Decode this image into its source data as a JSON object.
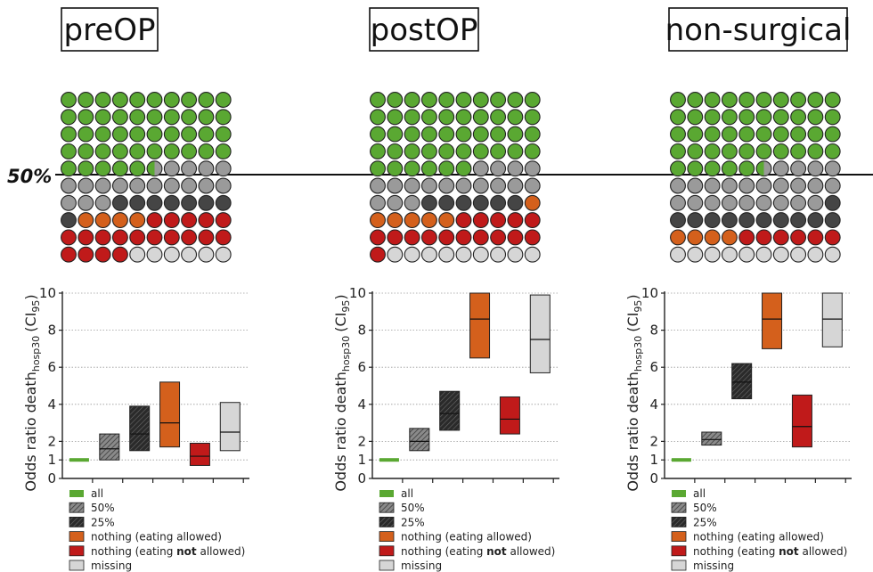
{
  "fifty_label": "50%",
  "colors": {
    "all": "#5aa832",
    "p50": "#9a9a9a",
    "p25": "#454545",
    "eat": "#d4601c",
    "noeat": "#c01a1a",
    "missing": "#d6d6d6"
  },
  "chart_data": [
    {
      "type": "waffle+floating-bar",
      "title": "preOP",
      "ylabel": {
        "main": "Odds ratio death",
        "sub": "hosp30",
        "ci": "(CI",
        "ci_sub": "95",
        "ci_end": ")"
      },
      "ylim": [
        0,
        10
      ],
      "yticks": [
        0,
        1,
        2,
        4,
        6,
        8,
        10
      ],
      "waffle_counts": {
        "all": 45.5,
        "p50": 17.5,
        "p25": 8,
        "eat": 4,
        "noeat": 19,
        "missing": 9
      },
      "boxes": [
        {
          "category": "all",
          "lower": 1,
          "upper": 1,
          "mid": 1
        },
        {
          "category": "50%",
          "lower": 1.0,
          "upper": 2.4,
          "mid": 1.6
        },
        {
          "category": "25%",
          "lower": 1.5,
          "upper": 3.9,
          "mid": 2.4
        },
        {
          "category": "nothing (eating allowed)",
          "lower": 1.7,
          "upper": 5.2,
          "mid": 3.0
        },
        {
          "category": "nothing (eating not allowed)",
          "lower": 0.7,
          "upper": 1.9,
          "mid": 1.2
        },
        {
          "category": "missing",
          "lower": 1.5,
          "upper": 4.1,
          "mid": 2.5
        }
      ]
    },
    {
      "type": "waffle+floating-bar",
      "title": "postOP",
      "ylabel": {
        "main": "Odds ratio death",
        "sub": "hosp30",
        "ci": "(CI",
        "ci_sub": "95",
        "ci_end": ")"
      },
      "ylim": [
        0,
        10
      ],
      "yticks": [
        0,
        1,
        2,
        4,
        6,
        8,
        10
      ],
      "waffle_counts": {
        "all": 46,
        "p50": 17,
        "p25": 6,
        "eat": 6,
        "noeat": 16,
        "missing": 9
      },
      "boxes": [
        {
          "category": "all",
          "lower": 1,
          "upper": 1,
          "mid": 1
        },
        {
          "category": "50%",
          "lower": 1.5,
          "upper": 2.7,
          "mid": 2.0
        },
        {
          "category": "25%",
          "lower": 2.6,
          "upper": 4.7,
          "mid": 3.5
        },
        {
          "category": "nothing (eating allowed)",
          "lower": 6.5,
          "upper": 10,
          "mid": 8.6
        },
        {
          "category": "nothing (eating not allowed)",
          "lower": 2.4,
          "upper": 4.4,
          "mid": 3.2
        },
        {
          "category": "missing",
          "lower": 5.7,
          "upper": 9.9,
          "mid": 7.5
        }
      ]
    },
    {
      "type": "waffle+floating-bar",
      "title": "non-surgical",
      "ylabel": {
        "main": "Odds ratio death",
        "sub": "hosp30",
        "ci": "(CI",
        "ci_sub": "95",
        "ci_end": ")"
      },
      "ylim": [
        0,
        10
      ],
      "yticks": [
        0,
        1,
        2,
        4,
        6,
        8,
        10
      ],
      "waffle_counts": {
        "all": 45.5,
        "p50": 23.5,
        "p25": 11,
        "eat": 4,
        "noeat": 6,
        "missing": 10
      },
      "boxes": [
        {
          "category": "all",
          "lower": 1,
          "upper": 1,
          "mid": 1
        },
        {
          "category": "50%",
          "lower": 1.8,
          "upper": 2.5,
          "mid": 2.1
        },
        {
          "category": "25%",
          "lower": 4.3,
          "upper": 6.2,
          "mid": 5.2
        },
        {
          "category": "nothing (eating allowed)",
          "lower": 7.0,
          "upper": 10,
          "mid": 8.6
        },
        {
          "category": "nothing (eating not allowed)",
          "lower": 1.7,
          "upper": 4.5,
          "mid": 2.8
        },
        {
          "category": "missing",
          "lower": 7.1,
          "upper": 10,
          "mid": 8.6
        }
      ]
    }
  ],
  "legend": [
    {
      "key": "all",
      "text": "all"
    },
    {
      "key": "p50",
      "text": "50%"
    },
    {
      "key": "p25",
      "text": "25%"
    },
    {
      "key": "eat",
      "text": "nothing (eating allowed)"
    },
    {
      "key": "noeat",
      "before": "nothing (eating ",
      "bold": "not",
      "after": " allowed)"
    },
    {
      "key": "missing",
      "text": "missing"
    }
  ]
}
